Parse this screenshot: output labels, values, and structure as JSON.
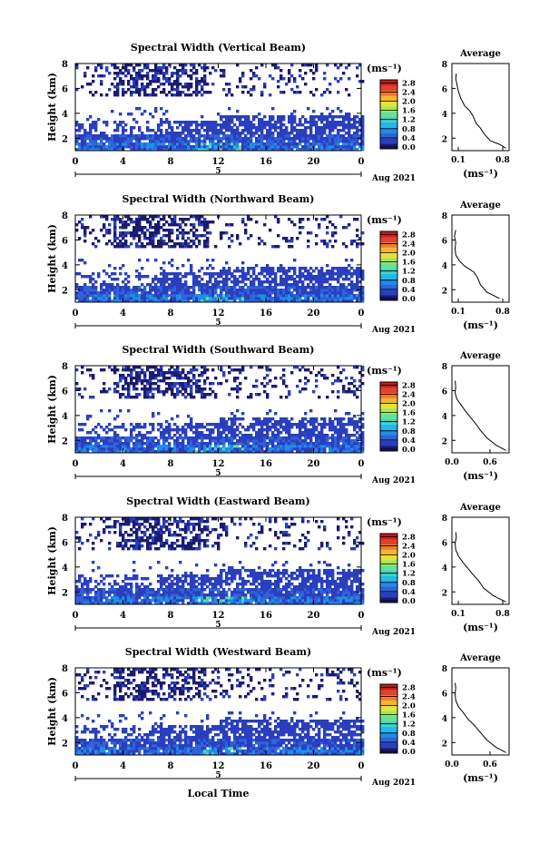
{
  "chart_data": {
    "type": "heatmap",
    "xlabel": "Local Time",
    "date_label": "Aug 2021",
    "day_label": "5",
    "x_ticks": [
      "0",
      "4",
      "8",
      "12",
      "16",
      "20",
      "0"
    ],
    "xlim": [
      0,
      24
    ],
    "ylabel": "Height (km)",
    "y_ticks": [
      "2",
      "4",
      "6",
      "8"
    ],
    "ylim": [
      1,
      8
    ],
    "colorbar": {
      "unit": "(ms⁻¹)",
      "ticks": [
        "2.8",
        "2.4",
        "2.0",
        "1.6",
        "1.2",
        "0.8",
        "0.4",
        "0.0"
      ],
      "range": [
        0.0,
        2.8
      ],
      "colors": [
        "#1b1b6e",
        "#2a3fbf",
        "#2f63d8",
        "#1f8fe6",
        "#22b8e8",
        "#3fd6c8",
        "#66e09a",
        "#a6e65a",
        "#e6e23a",
        "#f5b52e",
        "#f07b2a",
        "#e4402a",
        "#c81e1e"
      ]
    },
    "panels": [
      {
        "title": "Spectral Width (Vertical Beam)",
        "avg": {
          "title": "Average",
          "xlabel": "(ms⁻¹)",
          "xlim": [
            0.0,
            0.9
          ],
          "x_ticks": [
            "0.1",
            "0.8"
          ],
          "x_tick_values": [
            0.1,
            0.8
          ],
          "y_ticks": [
            "2",
            "4",
            "6",
            "8"
          ],
          "ylim": [
            1,
            8
          ],
          "profile": [
            [
              0.85,
              1.2
            ],
            [
              0.75,
              1.5
            ],
            [
              0.6,
              1.8
            ],
            [
              0.5,
              2.4
            ],
            [
              0.45,
              2.8
            ],
            [
              0.38,
              3.2
            ],
            [
              0.33,
              3.8
            ],
            [
              0.28,
              4.2
            ],
            [
              0.2,
              4.6
            ],
            [
              0.14,
              5.2
            ],
            [
              0.1,
              5.8
            ],
            [
              0.08,
              6.3
            ],
            [
              0.06,
              6.8
            ],
            [
              0.07,
              7.2
            ]
          ]
        }
      },
      {
        "title": "Spectral Width (Northward Beam)",
        "avg": {
          "title": "Average",
          "xlabel": "(ms⁻¹)",
          "xlim": [
            0.0,
            0.9
          ],
          "x_ticks": [
            "0.1",
            "0.8"
          ],
          "x_tick_values": [
            0.1,
            0.8
          ],
          "y_ticks": [
            "2",
            "4",
            "6",
            "8"
          ],
          "ylim": [
            1,
            8
          ],
          "profile": [
            [
              0.75,
              1.3
            ],
            [
              0.55,
              1.8
            ],
            [
              0.45,
              2.4
            ],
            [
              0.4,
              3.0
            ],
            [
              0.35,
              3.4
            ],
            [
              0.2,
              3.9
            ],
            [
              0.12,
              4.3
            ],
            [
              0.06,
              4.8
            ],
            [
              0.05,
              5.3
            ],
            [
              0.06,
              5.8
            ],
            [
              0.04,
              6.3
            ],
            [
              0.06,
              6.8
            ]
          ]
        }
      },
      {
        "title": "Spectral Width (Southward Beam)",
        "avg": {
          "title": "Average",
          "xlabel": "(ms⁻¹)",
          "xlim": [
            0.0,
            0.9
          ],
          "x_ticks": [
            "0.0",
            "0.6"
          ],
          "x_tick_values": [
            0.0,
            0.6
          ],
          "y_ticks": [
            "2",
            "4",
            "6",
            "8"
          ],
          "ylim": [
            1,
            8
          ],
          "profile": [
            [
              0.85,
              1.2
            ],
            [
              0.7,
              1.6
            ],
            [
              0.55,
              2.2
            ],
            [
              0.45,
              2.8
            ],
            [
              0.38,
              3.3
            ],
            [
              0.3,
              3.8
            ],
            [
              0.22,
              4.3
            ],
            [
              0.15,
              4.8
            ],
            [
              0.08,
              5.3
            ],
            [
              0.05,
              5.8
            ],
            [
              0.06,
              6.3
            ],
            [
              0.05,
              6.8
            ]
          ]
        }
      },
      {
        "title": "Spectral Width (Eastward Beam)",
        "avg": {
          "title": "Average",
          "xlabel": "(ms⁻¹)",
          "xlim": [
            0.0,
            0.9
          ],
          "x_ticks": [
            "0.1",
            "0.8"
          ],
          "x_tick_values": [
            0.1,
            0.8
          ],
          "y_ticks": [
            "2",
            "4",
            "6",
            "8"
          ],
          "ylim": [
            1,
            8
          ],
          "profile": [
            [
              0.85,
              1.2
            ],
            [
              0.65,
              1.7
            ],
            [
              0.5,
              2.3
            ],
            [
              0.42,
              2.9
            ],
            [
              0.33,
              3.4
            ],
            [
              0.25,
              3.9
            ],
            [
              0.17,
              4.4
            ],
            [
              0.1,
              4.9
            ],
            [
              0.06,
              5.4
            ],
            [
              0.05,
              5.9
            ],
            [
              0.07,
              6.4
            ],
            [
              0.06,
              6.8
            ]
          ]
        }
      },
      {
        "title": "Spectral Width (Westward Beam)",
        "avg": {
          "title": "Average",
          "xlabel": "(ms⁻¹)",
          "xlim": [
            0.0,
            0.9
          ],
          "x_ticks": [
            "0.0",
            "0.6"
          ],
          "x_tick_values": [
            0.0,
            0.6
          ],
          "y_ticks": [
            "2",
            "4",
            "6",
            "8"
          ],
          "ylim": [
            1,
            8
          ],
          "profile": [
            [
              0.85,
              1.2
            ],
            [
              0.7,
              1.6
            ],
            [
              0.55,
              2.2
            ],
            [
              0.45,
              2.8
            ],
            [
              0.35,
              3.4
            ],
            [
              0.25,
              3.9
            ],
            [
              0.18,
              4.4
            ],
            [
              0.1,
              4.9
            ],
            [
              0.06,
              5.4
            ],
            [
              0.05,
              5.9
            ],
            [
              0.06,
              6.4
            ],
            [
              0.05,
              6.8
            ]
          ]
        }
      }
    ]
  }
}
